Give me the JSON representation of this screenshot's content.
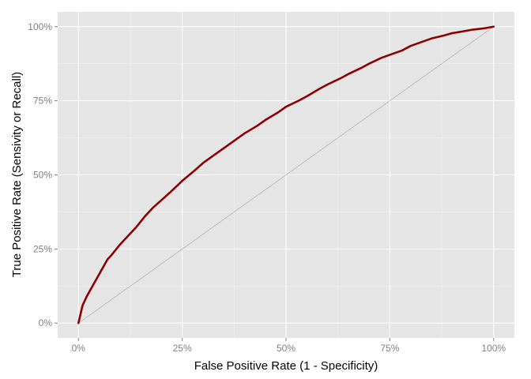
{
  "chart_data": {
    "type": "line",
    "title": "",
    "xlabel": "False Positive Rate (1 - Specificity)",
    "ylabel": "True Positive Rate (Sensivity or Recall)",
    "xlim": [
      -0.05,
      1.05
    ],
    "ylim": [
      -0.05,
      1.05
    ],
    "x_ticks": [
      0,
      0.25,
      0.5,
      0.75,
      1.0
    ],
    "x_tick_labels": [
      "0%",
      "25%",
      "50%",
      "75%",
      "100%"
    ],
    "y_ticks": [
      0,
      0.25,
      0.5,
      0.75,
      1.0
    ],
    "y_tick_labels": [
      "0%",
      "25%",
      "50%",
      "75%",
      "100%"
    ],
    "grid": true,
    "background_color": "#e5e5e5",
    "grid_color": "#ffffff",
    "series": [
      {
        "color": "#8b0000",
        "x": [
          0.0,
          0.005,
          0.01,
          0.02,
          0.03,
          0.04,
          0.05,
          0.06,
          0.07,
          0.08,
          0.1,
          0.12,
          0.14,
          0.16,
          0.18,
          0.2,
          0.22,
          0.25,
          0.28,
          0.3,
          0.33,
          0.35,
          0.38,
          0.4,
          0.43,
          0.45,
          0.48,
          0.5,
          0.53,
          0.55,
          0.58,
          0.6,
          0.63,
          0.65,
          0.68,
          0.7,
          0.73,
          0.75,
          0.78,
          0.8,
          0.83,
          0.85,
          0.88,
          0.9,
          0.93,
          0.95,
          0.98,
          1.0
        ],
        "y": [
          0.0,
          0.03,
          0.06,
          0.09,
          0.115,
          0.14,
          0.165,
          0.19,
          0.215,
          0.23,
          0.265,
          0.295,
          0.325,
          0.36,
          0.39,
          0.415,
          0.44,
          0.48,
          0.515,
          0.54,
          0.57,
          0.59,
          0.62,
          0.64,
          0.665,
          0.685,
          0.71,
          0.73,
          0.75,
          0.765,
          0.79,
          0.805,
          0.825,
          0.84,
          0.86,
          0.875,
          0.895,
          0.905,
          0.92,
          0.935,
          0.95,
          0.96,
          0.97,
          0.978,
          0.985,
          0.99,
          0.995,
          1.0
        ]
      },
      {
        "color": "#b3b3b3",
        "x": [
          0,
          1
        ],
        "y": [
          0,
          1
        ]
      }
    ]
  }
}
